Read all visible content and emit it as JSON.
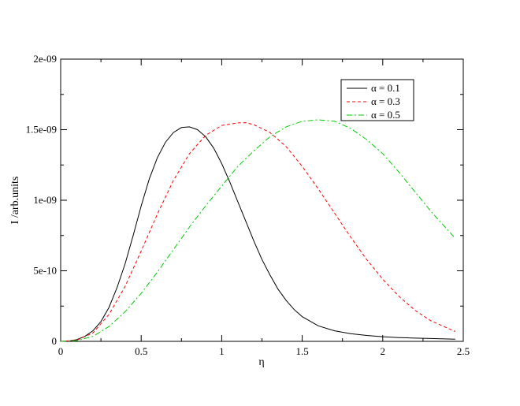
{
  "chart_data": {
    "type": "line",
    "xlabel": "η",
    "ylabel": "I /arb.units",
    "xlim": [
      0,
      2.5
    ],
    "ylim": [
      0,
      2e-09
    ],
    "x_ticks": [
      0,
      0.5,
      1,
      1.5,
      2,
      2.5
    ],
    "x_tick_labels": [
      "0",
      "0.5",
      "1",
      "1.5",
      "2",
      "2.5"
    ],
    "y_ticks": [
      0,
      5e-10,
      1e-09,
      1.5e-09,
      2e-09
    ],
    "y_tick_labels": [
      "0",
      "5e-10",
      "1e-09",
      "1.5e-09",
      "2e-09"
    ],
    "grid": false,
    "legend_position": "top-right",
    "series": [
      {
        "name": "α = 0.1",
        "color": "#000000",
        "dash": "solid",
        "x": [
          0,
          0.05,
          0.1,
          0.15,
          0.2,
          0.25,
          0.3,
          0.35,
          0.4,
          0.45,
          0.5,
          0.55,
          0.6,
          0.65,
          0.7,
          0.75,
          0.8,
          0.85,
          0.9,
          0.95,
          1.0,
          1.05,
          1.1,
          1.15,
          1.2,
          1.25,
          1.3,
          1.35,
          1.4,
          1.45,
          1.5,
          1.6,
          1.7,
          1.8,
          1.9,
          2.0,
          2.1,
          2.2,
          2.3,
          2.45
        ],
        "y": [
          0,
          2e-12,
          1.2e-11,
          3.5e-11,
          7.5e-11,
          1.4e-10,
          2.4e-10,
          3.8e-10,
          5.5e-10,
          7.5e-10,
          9.6e-10,
          1.15e-09,
          1.3e-09,
          1.41e-09,
          1.48e-09,
          1.515e-09,
          1.52e-09,
          1.5e-09,
          1.45e-09,
          1.37e-09,
          1.26e-09,
          1.13e-09,
          9.9e-10,
          8.5e-10,
          7.1e-10,
          5.8e-10,
          4.7e-10,
          3.7e-10,
          2.9e-10,
          2.25e-10,
          1.75e-10,
          1.1e-10,
          7.5e-11,
          5.5e-11,
          4.2e-11,
          3.3e-11,
          2.7e-11,
          2.3e-11,
          2e-11,
          1.5e-11
        ]
      },
      {
        "name": "α = 0.3",
        "color": "#ff0000",
        "dash": "4,3",
        "x": [
          0,
          0.1,
          0.2,
          0.3,
          0.4,
          0.5,
          0.6,
          0.7,
          0.8,
          0.9,
          1.0,
          1.1,
          1.15,
          1.2,
          1.3,
          1.4,
          1.5,
          1.6,
          1.7,
          1.8,
          1.9,
          2.0,
          2.1,
          2.2,
          2.3,
          2.45
        ],
        "y": [
          0,
          8e-12,
          6e-11,
          1.9e-10,
          3.9e-10,
          6.4e-10,
          9e-10,
          1.14e-09,
          1.33e-09,
          1.46e-09,
          1.53e-09,
          1.548e-09,
          1.55e-09,
          1.535e-09,
          1.48e-09,
          1.38e-09,
          1.24e-09,
          1.08e-09,
          9.1e-10,
          7.4e-10,
          5.8e-10,
          4.4e-10,
          3.2e-10,
          2.2e-10,
          1.45e-10,
          7e-11
        ]
      },
      {
        "name": "α = 0.5",
        "color": "#00cc00",
        "dash": "7,3,2,3",
        "x": [
          0,
          0.1,
          0.2,
          0.3,
          0.4,
          0.5,
          0.6,
          0.7,
          0.8,
          0.9,
          1.0,
          1.1,
          1.2,
          1.3,
          1.4,
          1.5,
          1.6,
          1.7,
          1.8,
          1.9,
          2.0,
          2.1,
          2.2,
          2.3,
          2.45
        ],
        "y": [
          0,
          5e-12,
          3.5e-11,
          1.05e-10,
          2.1e-10,
          3.4e-10,
          4.9e-10,
          6.5e-10,
          8.1e-10,
          9.6e-10,
          1.1e-09,
          1.24e-09,
          1.35e-09,
          1.45e-09,
          1.52e-09,
          1.56e-09,
          1.57e-09,
          1.56e-09,
          1.51e-09,
          1.43e-09,
          1.33e-09,
          1.2e-09,
          1.06e-09,
          9.2e-10,
          7.3e-10
        ]
      }
    ]
  }
}
